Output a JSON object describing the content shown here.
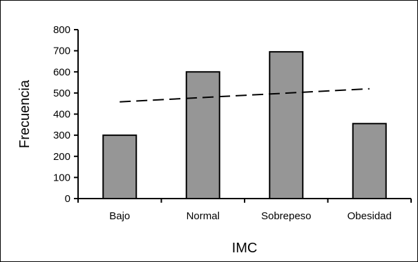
{
  "chart_data": {
    "type": "bar",
    "title": "",
    "xlabel": "IMC",
    "ylabel": "Frecuencia",
    "categories": [
      "Bajo",
      "Normal",
      "Sobrepeso",
      "Obesidad"
    ],
    "values": [
      300,
      600,
      695,
      355
    ],
    "ylim": [
      0,
      800
    ],
    "yticks": [
      0,
      100,
      200,
      300,
      400,
      500,
      600,
      700,
      800
    ],
    "ytick_labels": [
      "0",
      "100",
      "200",
      "300",
      "400",
      "500",
      "600",
      "700",
      "800"
    ],
    "trendline": {
      "style": "dashed",
      "start": 458,
      "end": 520
    },
    "grid": false,
    "legend": "none",
    "colors": {
      "bar_fill": "#969696",
      "bar_stroke": "#000000",
      "trend": "#000000"
    }
  }
}
